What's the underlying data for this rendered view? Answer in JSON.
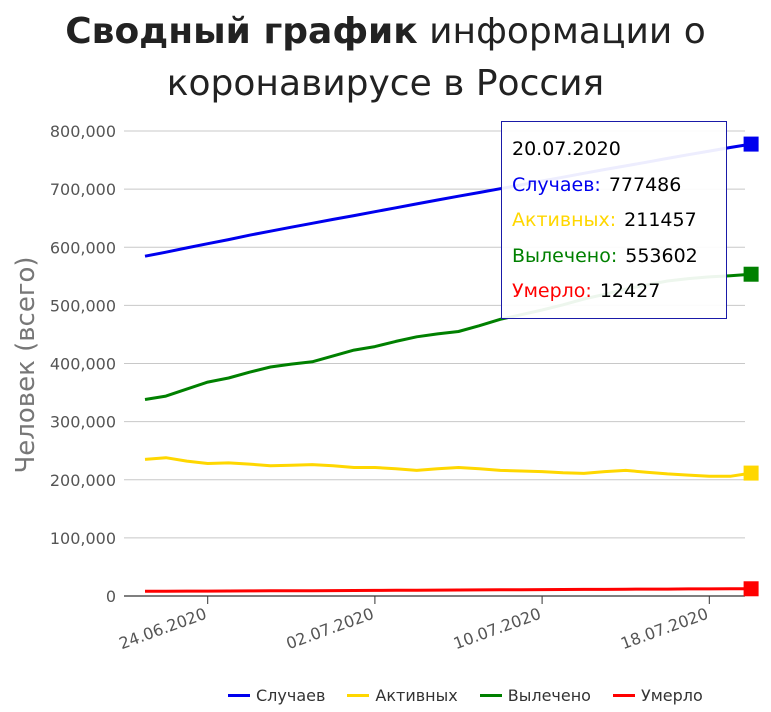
{
  "title": {
    "bold": "Сводный график",
    "rest": " информации о",
    "line2": "коронавирусе в Россия"
  },
  "chart_data": {
    "type": "line",
    "ylabel": "Человек (всего)",
    "ylim": [
      0,
      800000
    ],
    "yticks": [
      "0",
      "100,000",
      "200,000",
      "300,000",
      "400,000",
      "500,000",
      "600,000",
      "700,000",
      "800,000"
    ],
    "x_ticks": [
      "24.06.2020",
      "02.07.2020",
      "10.07.2020",
      "18.07.2020"
    ],
    "x": [
      "21.06.2020",
      "22.06.2020",
      "23.06.2020",
      "24.06.2020",
      "25.06.2020",
      "26.06.2020",
      "27.06.2020",
      "28.06.2020",
      "29.06.2020",
      "30.06.2020",
      "01.07.2020",
      "02.07.2020",
      "03.07.2020",
      "04.07.2020",
      "05.07.2020",
      "06.07.2020",
      "07.07.2020",
      "08.07.2020",
      "09.07.2020",
      "10.07.2020",
      "11.07.2020",
      "12.07.2020",
      "13.07.2020",
      "14.07.2020",
      "15.07.2020",
      "16.07.2020",
      "17.07.2020",
      "18.07.2020",
      "19.07.2020",
      "20.07.2020"
    ],
    "series": [
      {
        "name": "Случаев",
        "color": "#0000ee",
        "values": [
          584680,
          591465,
          598878,
          606043,
          613148,
          620794,
          627646,
          634437,
          641156,
          647849,
          654405,
          661165,
          667883,
          674515,
          681251,
          687862,
          694230,
          700792,
          707301,
          713936,
          720547,
          727162,
          733699,
          739947,
          746369,
          752797,
          759203,
          765437,
          771546,
          777486
        ]
      },
      {
        "name": "Активных",
        "color": "#ffd700",
        "values": [
          235000,
          238000,
          232000,
          228000,
          229000,
          227000,
          224000,
          225000,
          226000,
          224000,
          221000,
          221000,
          219000,
          216000,
          219000,
          221000,
          219000,
          216000,
          215000,
          214000,
          212000,
          211000,
          214000,
          216000,
          213000,
          210000,
          208000,
          206000,
          206000,
          211457
        ]
      },
      {
        "name": "Вылечено",
        "color": "#008000",
        "values": [
          338000,
          344000,
          356000,
          368000,
          375000,
          385000,
          394000,
          399000,
          403000,
          413000,
          423000,
          429000,
          438000,
          446000,
          451000,
          455000,
          465000,
          476000,
          484000,
          492000,
          501000,
          511000,
          519000,
          528000,
          535000,
          542000,
          546000,
          549000,
          551000,
          553602
        ]
      },
      {
        "name": "Умерло",
        "color": "#ff0000",
        "values": [
          8111,
          8206,
          8359,
          8513,
          8605,
          8781,
          8863,
          9073,
          9152,
          9306,
          9536,
          9683,
          9844,
          10027,
          10120,
          10288,
          10478,
          10667,
          10843,
          11017,
          11205,
          11335,
          11439,
          11614,
          11820,
          11937,
          12151,
          12247,
          12342,
          12427
        ]
      }
    ],
    "tooltip": {
      "date": "20.07.2020",
      "rows": [
        {
          "label": "Случаев:",
          "value": "777486",
          "color": "#0000ee"
        },
        {
          "label": "Активных:",
          "value": "211457",
          "color": "#ffd700"
        },
        {
          "label": "Вылечено:",
          "value": "553602",
          "color": "#008000"
        },
        {
          "label": "Умерло:",
          "value": "12427",
          "color": "#ff0000"
        }
      ]
    },
    "legend_position": "bottom-right",
    "grid": true
  }
}
